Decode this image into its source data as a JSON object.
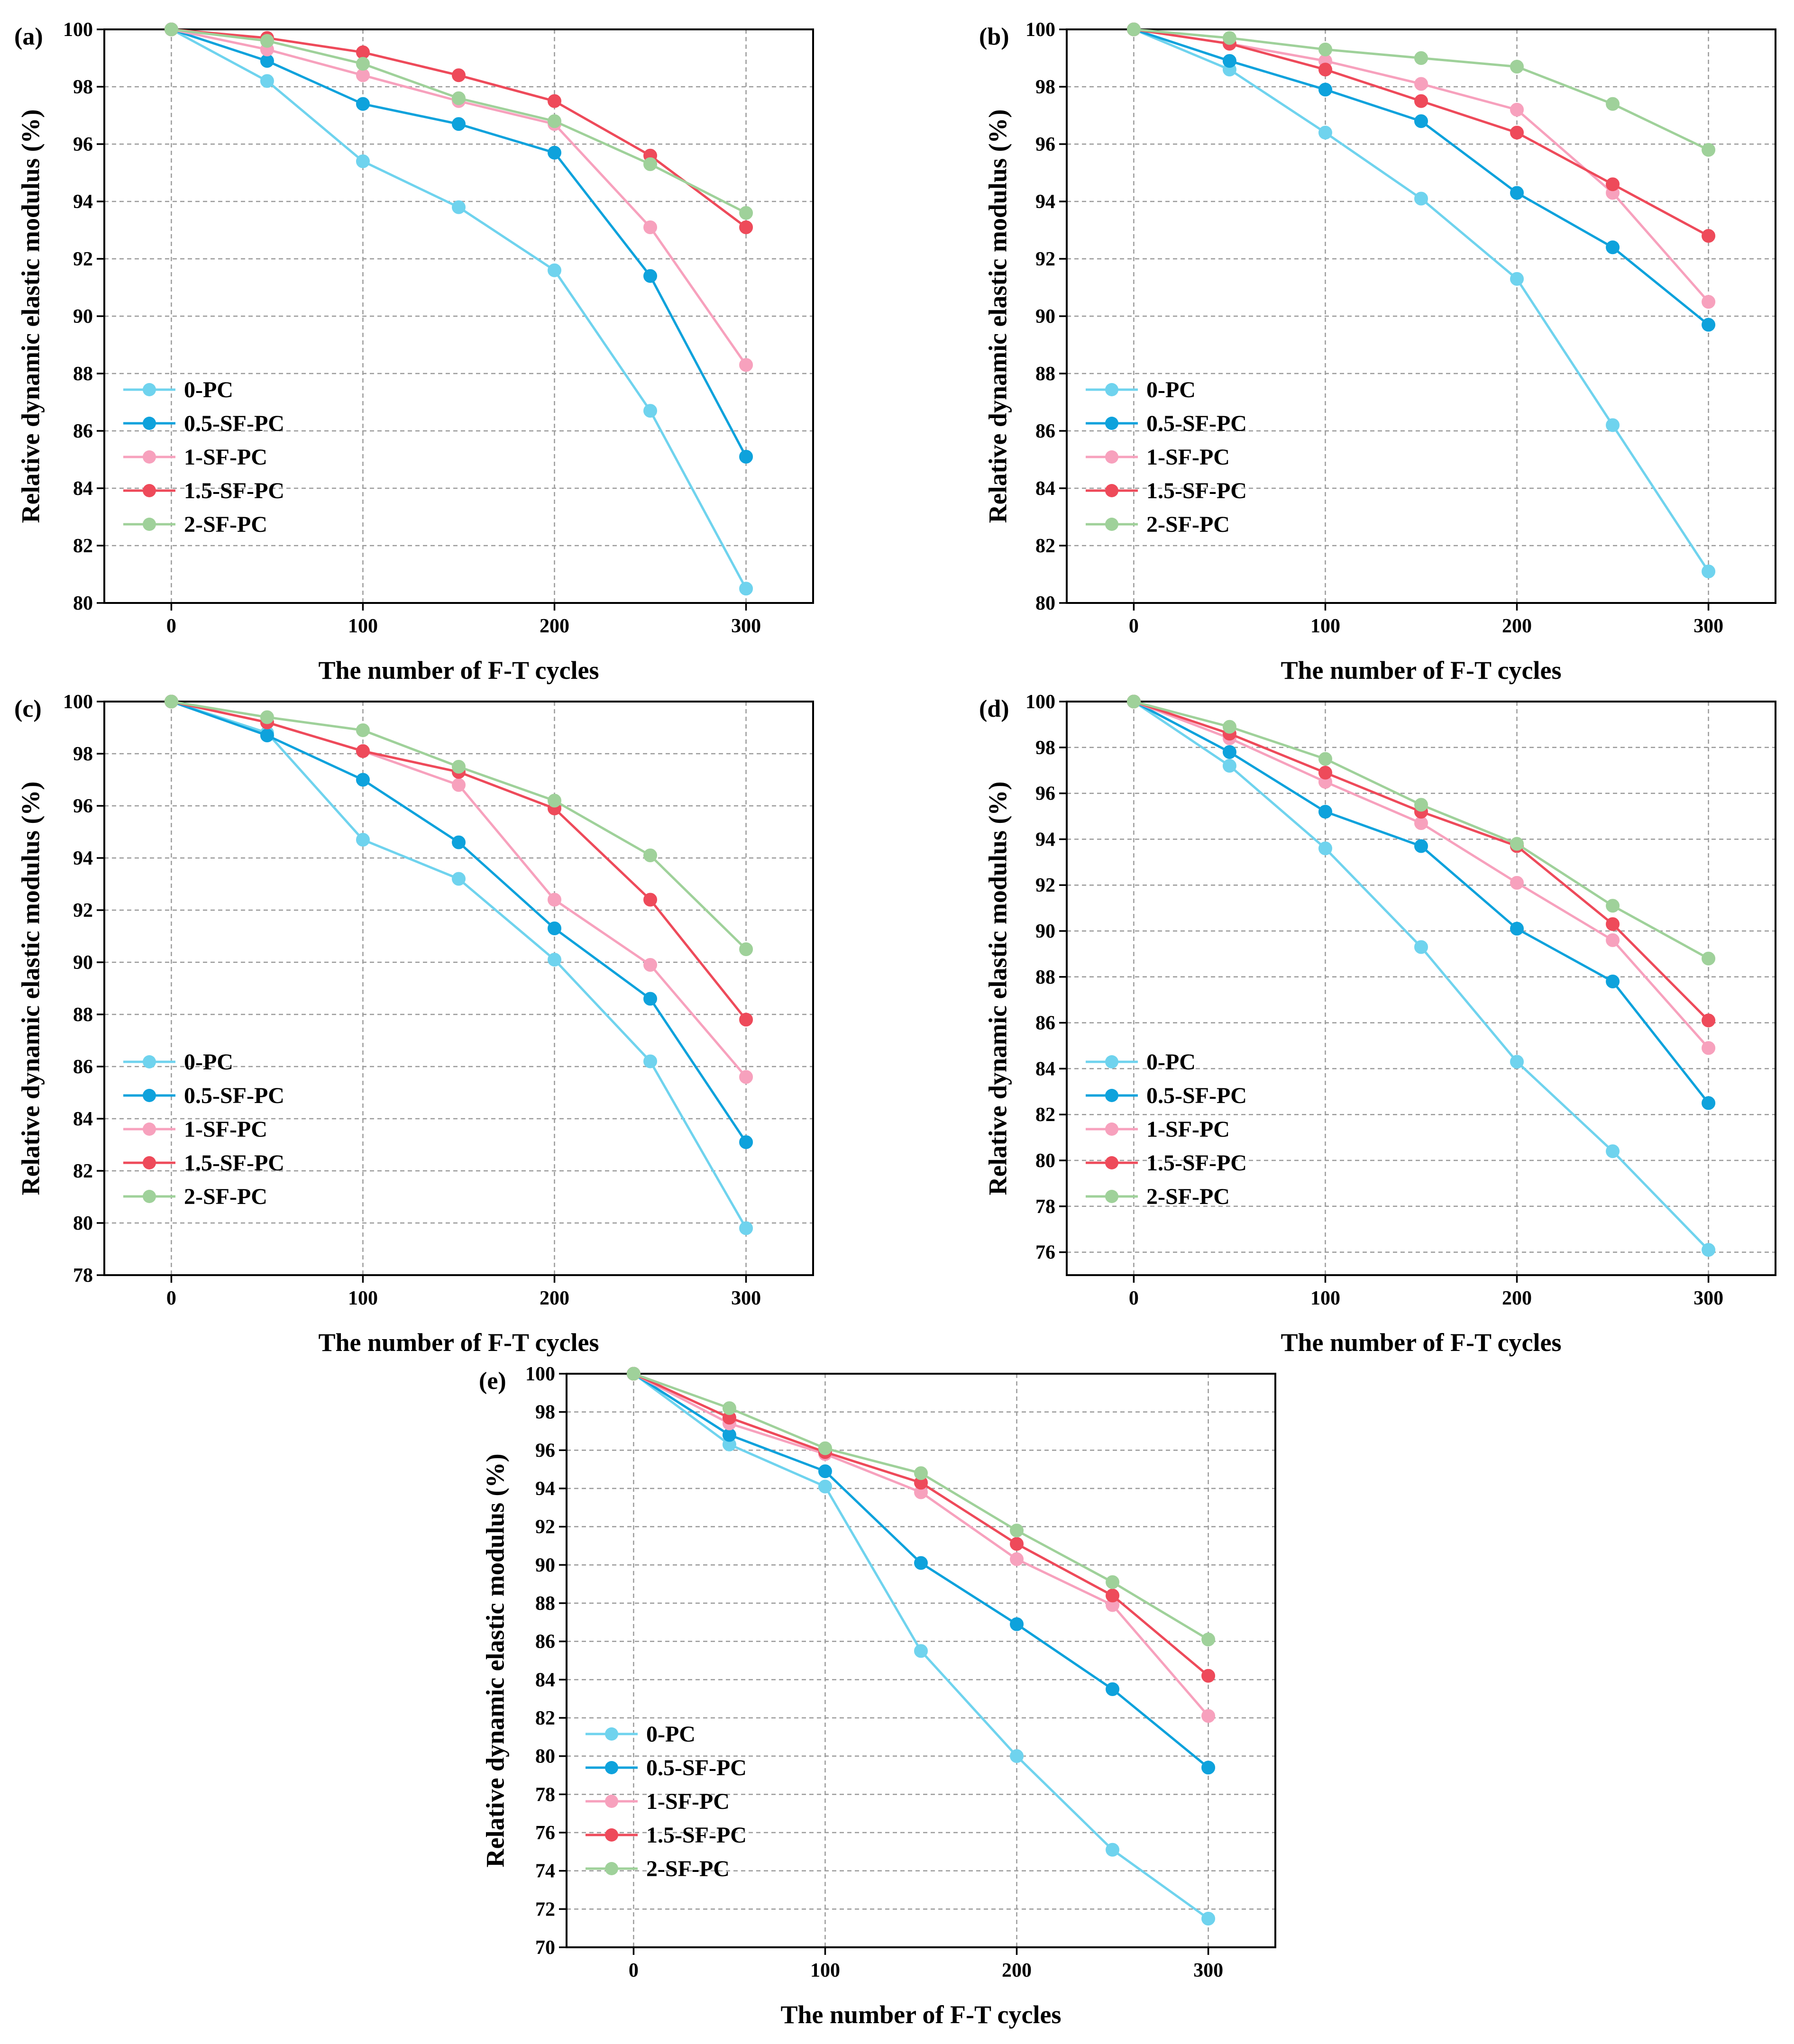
{
  "figure": {
    "colors": {
      "0-PC": "#6fd3ee",
      "0.5-SF-PC": "#0ea2dc",
      "1-SF-PC": "#f7a1bd",
      "1.5-SF-PC": "#ee4a5a",
      "2-SF-PC": "#9fd19a"
    }
  },
  "chart_data": [
    {
      "panel": "(a)",
      "type": "line",
      "xlabel": "The number of F-T cycles",
      "ylabel": "Relative dynamic elastic modulus  (%)",
      "x": [
        0,
        50,
        100,
        150,
        200,
        250,
        300
      ],
      "xticks": [
        0,
        100,
        200,
        300
      ],
      "ylim": [
        80,
        100
      ],
      "yticks": [
        80,
        82,
        84,
        86,
        88,
        90,
        92,
        94,
        96,
        98,
        100
      ],
      "grid": true,
      "legend_position": "bottom-left",
      "series": [
        {
          "name": "0-PC",
          "values": [
            100,
            98.2,
            95.4,
            93.8,
            91.6,
            86.7,
            80.5
          ]
        },
        {
          "name": "0.5-SF-PC",
          "values": [
            100,
            98.9,
            97.4,
            96.7,
            95.7,
            91.4,
            85.1
          ]
        },
        {
          "name": "1-SF-PC",
          "values": [
            100,
            99.3,
            98.4,
            97.5,
            96.7,
            93.1,
            88.3
          ]
        },
        {
          "name": "1.5-SF-PC",
          "values": [
            100,
            99.7,
            99.2,
            98.4,
            97.5,
            95.6,
            93.1
          ]
        },
        {
          "name": "2-SF-PC",
          "values": [
            100,
            99.6,
            98.8,
            97.6,
            96.8,
            95.3,
            93.6
          ]
        }
      ]
    },
    {
      "panel": "(b)",
      "type": "line",
      "xlabel": "The number of F-T cycles",
      "ylabel": "Relative dynamic elastic modulus  (%)",
      "x": [
        0,
        50,
        100,
        150,
        200,
        250,
        300
      ],
      "xticks": [
        0,
        100,
        200,
        300
      ],
      "ylim": [
        80,
        100
      ],
      "yticks": [
        80,
        82,
        84,
        86,
        88,
        90,
        92,
        94,
        96,
        98,
        100
      ],
      "grid": true,
      "legend_position": "bottom-left",
      "series": [
        {
          "name": "0-PC",
          "values": [
            100,
            98.6,
            96.4,
            94.1,
            91.3,
            86.2,
            81.1
          ]
        },
        {
          "name": "0.5-SF-PC",
          "values": [
            100,
            98.9,
            97.9,
            96.8,
            94.3,
            92.4,
            89.7
          ]
        },
        {
          "name": "1-SF-PC",
          "values": [
            100,
            99.5,
            98.9,
            98.1,
            97.2,
            94.3,
            90.5
          ]
        },
        {
          "name": "1.5-SF-PC",
          "values": [
            100,
            99.5,
            98.6,
            97.5,
            96.4,
            94.6,
            92.8
          ]
        },
        {
          "name": "2-SF-PC",
          "values": [
            100,
            99.7,
            99.3,
            99.0,
            98.7,
            97.4,
            95.8
          ]
        }
      ]
    },
    {
      "panel": "(c)",
      "type": "line",
      "xlabel": "The number of F-T cycles",
      "ylabel": "Relative dynamic elastic modulus  (%)",
      "x": [
        0,
        50,
        100,
        150,
        200,
        250,
        300
      ],
      "xticks": [
        0,
        100,
        200,
        300
      ],
      "ylim": [
        78,
        100
      ],
      "yticks": [
        78,
        80,
        82,
        84,
        86,
        88,
        90,
        92,
        94,
        96,
        98,
        100
      ],
      "grid": true,
      "legend_position": "bottom-left",
      "series": [
        {
          "name": "0-PC",
          "values": [
            100,
            98.8,
            94.7,
            93.2,
            90.1,
            86.2,
            79.8
          ]
        },
        {
          "name": "0.5-SF-PC",
          "values": [
            100,
            98.7,
            97.0,
            94.6,
            91.3,
            88.6,
            83.1
          ]
        },
        {
          "name": "1-SF-PC",
          "values": [
            100,
            99.2,
            98.1,
            96.8,
            92.4,
            89.9,
            85.6
          ]
        },
        {
          "name": "1.5-SF-PC",
          "values": [
            100,
            99.2,
            98.1,
            97.3,
            95.9,
            92.4,
            87.8
          ]
        },
        {
          "name": "2-SF-PC",
          "values": [
            100,
            99.4,
            98.9,
            97.5,
            96.2,
            94.1,
            90.5
          ]
        }
      ]
    },
    {
      "panel": "(d)",
      "type": "line",
      "xlabel": "The number of F-T cycles",
      "ylabel": "Relative dynamic elastic modulus  (%)",
      "x": [
        0,
        50,
        100,
        150,
        200,
        250,
        300
      ],
      "xticks": [
        0,
        100,
        200,
        300
      ],
      "ylim": [
        75,
        100
      ],
      "yticks": [
        76,
        78,
        80,
        82,
        84,
        86,
        88,
        90,
        92,
        94,
        96,
        98,
        100
      ],
      "grid": true,
      "legend_position": "bottom-left",
      "series": [
        {
          "name": "0-PC",
          "values": [
            100,
            97.2,
            93.6,
            89.3,
            84.3,
            80.4,
            76.1
          ]
        },
        {
          "name": "0.5-SF-PC",
          "values": [
            100,
            97.8,
            95.2,
            93.7,
            90.1,
            87.8,
            82.5
          ]
        },
        {
          "name": "1-SF-PC",
          "values": [
            100,
            98.4,
            96.5,
            94.7,
            92.1,
            89.6,
            84.9
          ]
        },
        {
          "name": "1.5-SF-PC",
          "values": [
            100,
            98.6,
            96.9,
            95.2,
            93.7,
            90.3,
            86.1
          ]
        },
        {
          "name": "2-SF-PC",
          "values": [
            100,
            98.9,
            97.5,
            95.5,
            93.8,
            91.1,
            88.8
          ]
        }
      ]
    },
    {
      "panel": "(e)",
      "type": "line",
      "xlabel": "The number of F-T cycles",
      "ylabel": "Relative dynamic elastic modulus  (%)",
      "x": [
        0,
        50,
        100,
        150,
        200,
        250,
        300
      ],
      "xticks": [
        0,
        100,
        200,
        300
      ],
      "ylim": [
        70,
        100
      ],
      "yticks": [
        70,
        72,
        74,
        76,
        78,
        80,
        82,
        84,
        86,
        88,
        90,
        92,
        94,
        96,
        98,
        100
      ],
      "grid": true,
      "legend_position": "bottom-left",
      "series": [
        {
          "name": "0-PC",
          "values": [
            100,
            96.3,
            94.1,
            85.5,
            80.0,
            75.1,
            71.5
          ]
        },
        {
          "name": "0.5-SF-PC",
          "values": [
            100,
            96.8,
            94.9,
            90.1,
            86.9,
            83.5,
            79.4
          ]
        },
        {
          "name": "1-SF-PC",
          "values": [
            100,
            97.4,
            95.8,
            93.8,
            90.3,
            87.9,
            82.1
          ]
        },
        {
          "name": "1.5-SF-PC",
          "values": [
            100,
            97.7,
            95.9,
            94.3,
            91.1,
            88.4,
            84.2
          ]
        },
        {
          "name": "2-SF-PC",
          "values": [
            100,
            98.2,
            96.1,
            94.8,
            91.8,
            89.1,
            86.1
          ]
        }
      ]
    }
  ]
}
